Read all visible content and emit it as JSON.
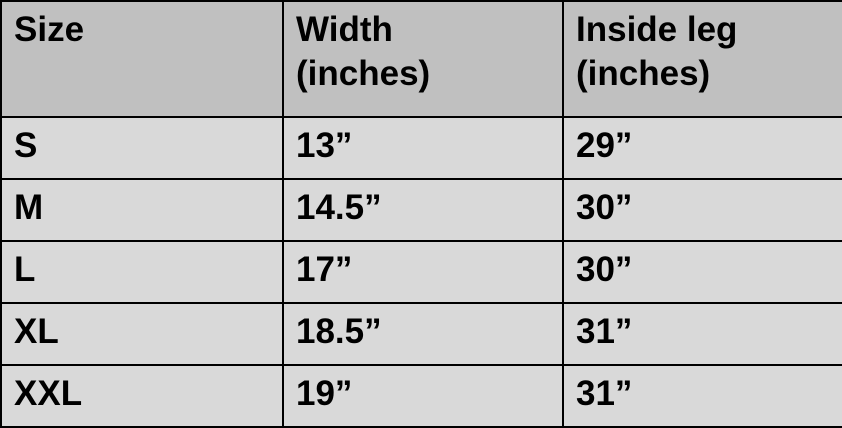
{
  "table": {
    "headers": [
      "Size",
      "Width\n(inches)",
      "Inside leg\n(inches)"
    ],
    "header_lines": [
      [
        "Size"
      ],
      [
        "Width",
        "(inches)"
      ],
      [
        "Inside leg",
        "(inches)"
      ]
    ],
    "rows": [
      [
        "S",
        "13”",
        "29”"
      ],
      [
        "M",
        "14.5”",
        "30”"
      ],
      [
        "L",
        "17”",
        "30”"
      ],
      [
        "XL",
        "18.5”",
        "31”"
      ],
      [
        "XXL",
        "19”",
        "31”"
      ]
    ]
  },
  "colors": {
    "header_bg": "#c0c0c0",
    "row_bg": "#d9d9d9",
    "border": "#000000"
  }
}
